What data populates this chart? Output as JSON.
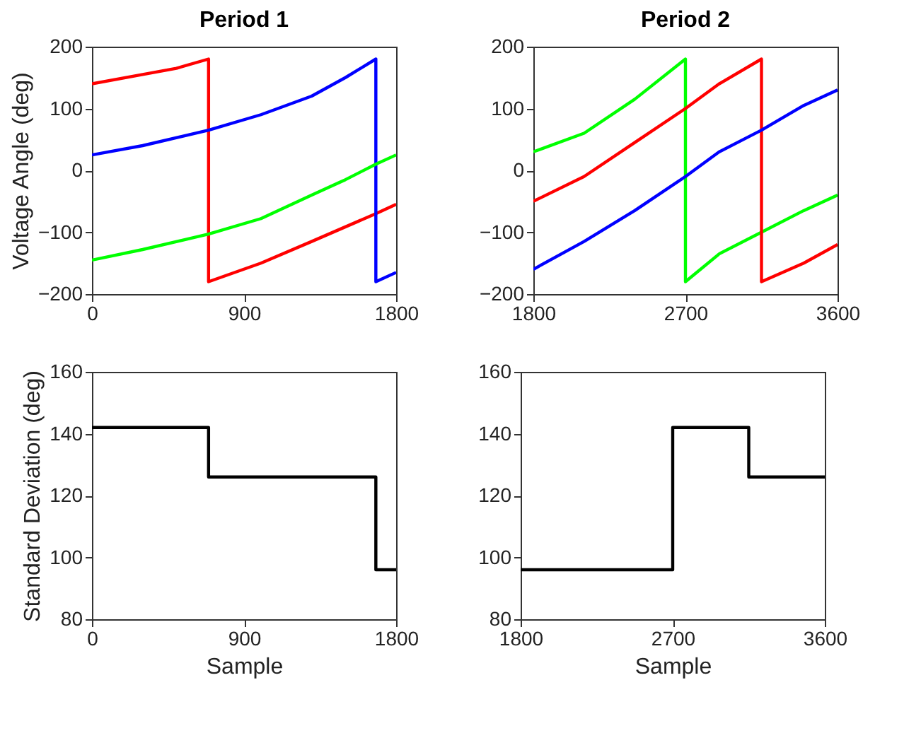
{
  "chart_data": [
    {
      "type": "line",
      "title": "Period 1",
      "ylabel": "Voltage Angle (deg)",
      "xlim": [
        0,
        1800
      ],
      "xticks": [
        0,
        900,
        1800
      ],
      "ylim": [
        -200,
        200
      ],
      "yticks": [
        -200,
        -100,
        0,
        100,
        200
      ],
      "grid": false,
      "legend": false,
      "marker": "none",
      "line_style": "solid",
      "series": [
        {
          "color": "#ff0000",
          "x": [
            0,
            300,
            500,
            690,
            690,
            1000,
            1300,
            1680,
            1800
          ],
          "values": [
            140,
            155,
            165,
            180,
            -180,
            -150,
            -115,
            -70,
            -55
          ]
        },
        {
          "color": "#0000ff",
          "x": [
            0,
            300,
            690,
            1000,
            1300,
            1500,
            1680,
            1680,
            1800
          ],
          "values": [
            25,
            40,
            65,
            90,
            120,
            150,
            180,
            -180,
            -165
          ]
        },
        {
          "color": "#00ff00",
          "x": [
            0,
            300,
            690,
            1000,
            1300,
            1500,
            1680,
            1800
          ],
          "values": [
            -145,
            -128,
            -103,
            -78,
            -40,
            -15,
            10,
            25
          ]
        }
      ]
    },
    {
      "type": "line",
      "title": "Period 2",
      "xlim": [
        1800,
        3600
      ],
      "xticks": [
        1800,
        2700,
        3600
      ],
      "ylim": [
        -200,
        200
      ],
      "yticks": [
        -200,
        -100,
        0,
        100,
        200
      ],
      "grid": false,
      "legend": false,
      "marker": "none",
      "line_style": "solid",
      "series": [
        {
          "color": "#00ff00",
          "x": [
            1800,
            2100,
            2400,
            2700,
            2700,
            2900,
            3150,
            3400,
            3600
          ],
          "values": [
            30,
            60,
            115,
            180,
            -180,
            -135,
            -100,
            -65,
            -40
          ]
        },
        {
          "color": "#ff0000",
          "x": [
            1800,
            2100,
            2400,
            2700,
            2900,
            3150,
            3150,
            3400,
            3600
          ],
          "values": [
            -50,
            -10,
            45,
            100,
            140,
            180,
            -180,
            -150,
            -120
          ]
        },
        {
          "color": "#0000ff",
          "x": [
            1800,
            2100,
            2400,
            2700,
            2900,
            3150,
            3400,
            3600
          ],
          "values": [
            -160,
            -115,
            -65,
            -10,
            30,
            65,
            105,
            130
          ]
        }
      ]
    },
    {
      "type": "line",
      "ylabel": "Standard Deviation (deg)",
      "xlabel": "Sample",
      "xlim": [
        0,
        1800
      ],
      "xticks": [
        0,
        900,
        1800
      ],
      "ylim": [
        80,
        160
      ],
      "yticks": [
        80,
        100,
        120,
        140,
        160
      ],
      "grid": false,
      "legend": false,
      "marker": "none",
      "line_style": "solid",
      "series": [
        {
          "color": "#000000",
          "x": [
            0,
            690,
            690,
            1680,
            1680,
            1800
          ],
          "values": [
            142,
            142,
            126,
            126,
            96,
            96
          ]
        }
      ]
    },
    {
      "type": "line",
      "xlabel": "Sample",
      "xlim": [
        1800,
        3600
      ],
      "xticks": [
        1800,
        2700,
        3600
      ],
      "ylim": [
        80,
        160
      ],
      "yticks": [
        80,
        100,
        120,
        140,
        160
      ],
      "grid": false,
      "legend": false,
      "marker": "none",
      "line_style": "solid",
      "series": [
        {
          "color": "#000000",
          "x": [
            1800,
            2700,
            2700,
            3150,
            3150,
            3600
          ],
          "values": [
            96,
            96,
            142,
            142,
            126,
            126
          ]
        }
      ]
    }
  ]
}
